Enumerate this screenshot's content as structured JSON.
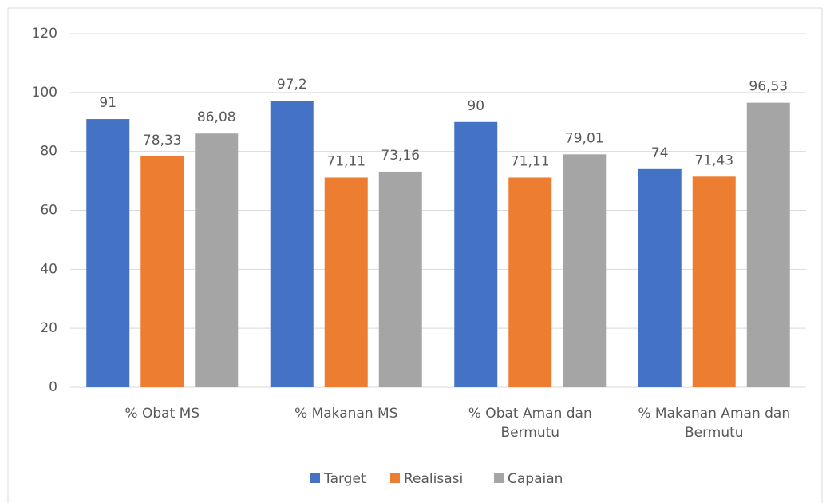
{
  "chart_data": {
    "type": "bar",
    "categories": [
      "% Obat MS",
      "% Makanan MS",
      "% Obat Aman dan Bermutu",
      "% Makanan Aman dan Bermutu"
    ],
    "series": [
      {
        "name": "Target",
        "color": "#4472c4",
        "values": [
          91,
          97.2,
          90,
          74
        ],
        "value_labels": [
          "91",
          "97,2",
          "90",
          "74"
        ]
      },
      {
        "name": "Realisasi",
        "color": "#ed7d31",
        "values": [
          78.33,
          71.11,
          71.11,
          71.43
        ],
        "value_labels": [
          "78,33",
          "71,11",
          "71,11",
          "71,43"
        ]
      },
      {
        "name": "Capaian",
        "color": "#a5a5a5",
        "values": [
          86.08,
          73.16,
          79.01,
          96.53
        ],
        "value_labels": [
          "86,08",
          "73,16",
          "79,01",
          "96,53"
        ]
      }
    ],
    "ylim": [
      0,
      120
    ],
    "yticks": [
      0,
      20,
      40,
      60,
      80,
      100,
      120
    ],
    "grid": true,
    "legend": "bottom"
  }
}
